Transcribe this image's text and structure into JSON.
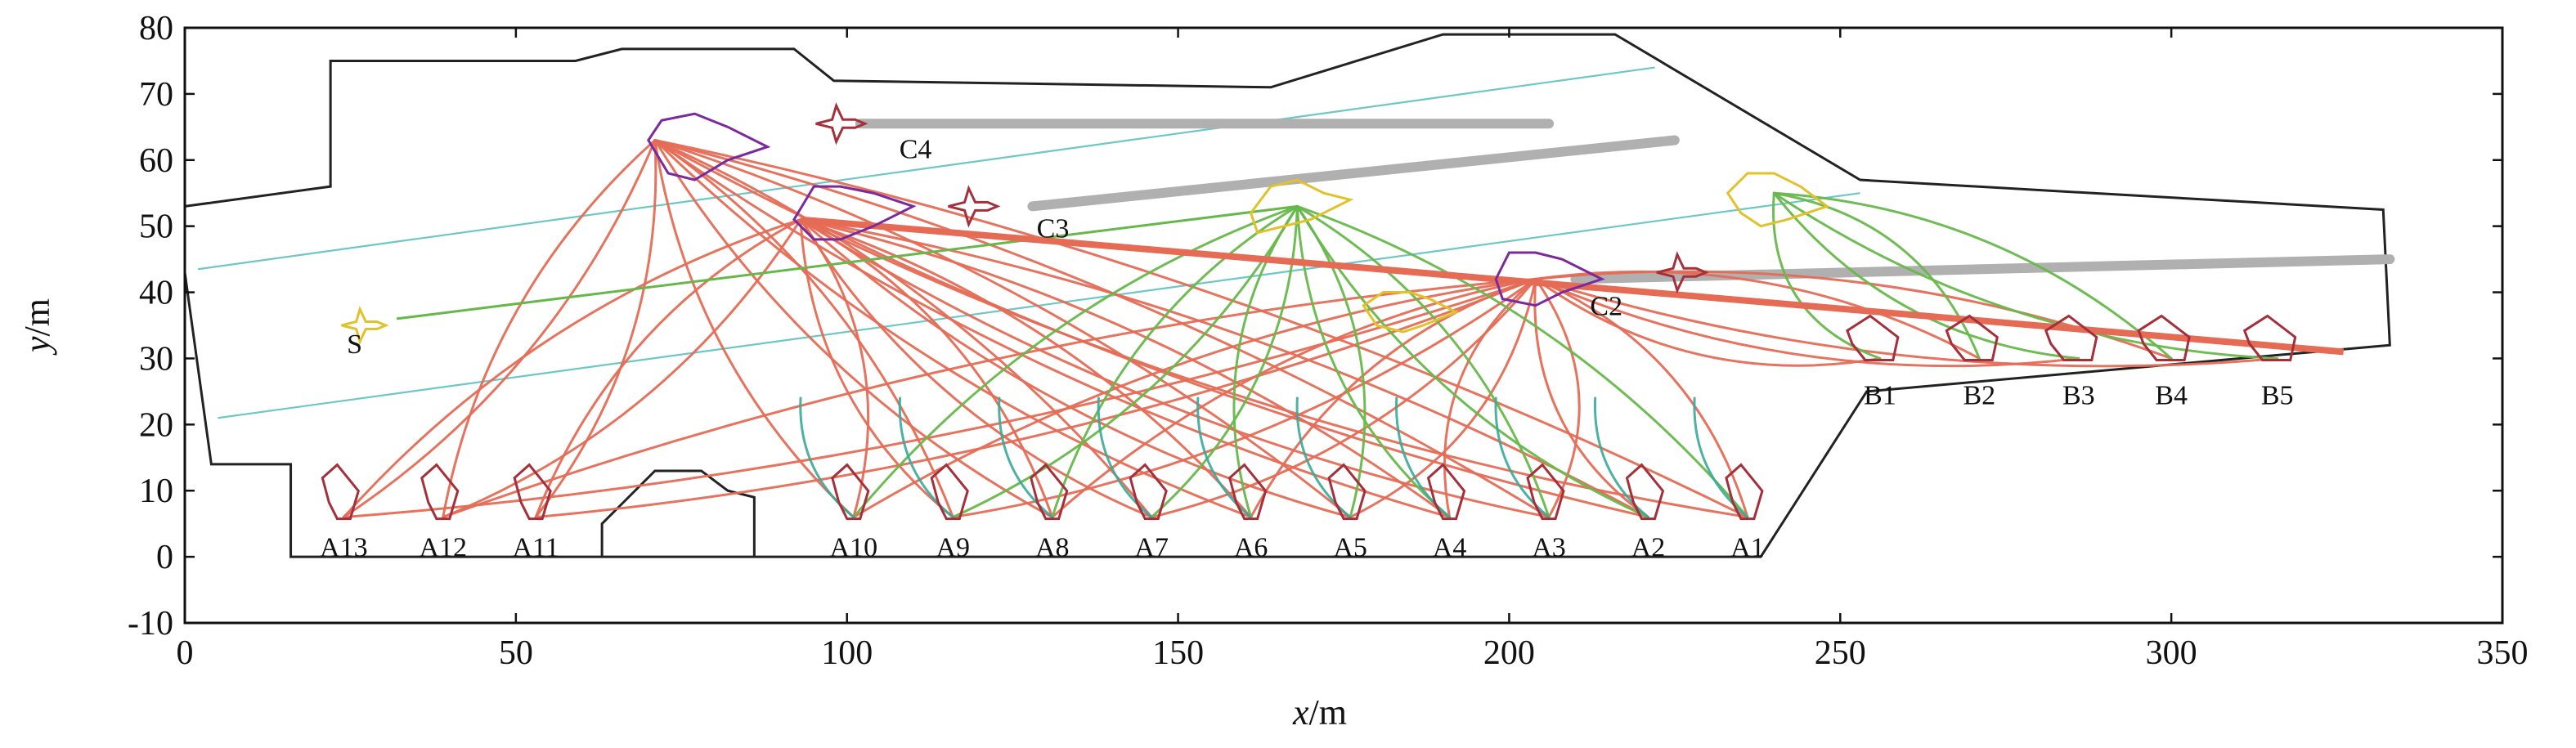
{
  "chart_data": {
    "type": "diagram-plot",
    "title": "",
    "xlabel_parts": {
      "var": "x",
      "unit": "/m"
    },
    "ylabel_parts": {
      "var": "y",
      "unit": "/m"
    },
    "xlim": [
      0,
      350
    ],
    "ylim": [
      -10,
      80
    ],
    "xticks": [
      0,
      50,
      100,
      150,
      200,
      250,
      300,
      350
    ],
    "yticks": [
      -10,
      0,
      10,
      20,
      30,
      40,
      50,
      60,
      70,
      80
    ],
    "grid": false,
    "colors": {
      "deck": "#222222",
      "runway": "#b0b0b0",
      "guide": "#6ec7c7",
      "red_path": "#e56b55",
      "green_path": "#67b84b",
      "teal_path": "#3aa89a",
      "aircraft": "#a3303a",
      "purple_marker": "#7a2a9c",
      "yellow_marker": "#e0c22a"
    },
    "deck_outline": [
      [
        0,
        53
      ],
      [
        22,
        56
      ],
      [
        22,
        75
      ],
      [
        59,
        75
      ],
      [
        66,
        76.8
      ],
      [
        92,
        76.8
      ],
      [
        98,
        72
      ],
      [
        164,
        71
      ],
      [
        190,
        79
      ],
      [
        216,
        79
      ],
      [
        253,
        57
      ],
      [
        332,
        52.5
      ],
      [
        333,
        32
      ],
      [
        254,
        25
      ],
      [
        238,
        0
      ],
      [
        16,
        0
      ],
      [
        16,
        14
      ],
      [
        4,
        14
      ],
      [
        0,
        43
      ]
    ],
    "hangar_outline": [
      [
        63,
        0
      ],
      [
        63,
        5
      ],
      [
        71,
        13
      ],
      [
        78,
        13
      ],
      [
        82,
        10
      ],
      [
        86,
        9
      ],
      [
        86,
        0
      ]
    ],
    "guide_lines": [
      {
        "start": [
          2,
          43.5
        ],
        "end": [
          222,
          74
        ]
      },
      {
        "start": [
          5,
          21
        ],
        "end": [
          253,
          55
        ]
      }
    ],
    "runways": [
      {
        "start": [
          102,
          65.5
        ],
        "end": [
          206,
          65.5
        ]
      },
      {
        "start": [
          128,
          53
        ],
        "end": [
          225,
          63
        ]
      },
      {
        "start": [
          210,
          42
        ],
        "end": [
          333,
          45
        ]
      }
    ],
    "named_points": [
      {
        "id": "A1",
        "x": 236,
        "y": 6
      },
      {
        "id": "A2",
        "x": 221,
        "y": 6
      },
      {
        "id": "A3",
        "x": 206,
        "y": 6
      },
      {
        "id": "A4",
        "x": 191,
        "y": 6
      },
      {
        "id": "A5",
        "x": 176,
        "y": 6
      },
      {
        "id": "A6",
        "x": 161,
        "y": 6
      },
      {
        "id": "A7",
        "x": 146,
        "y": 6
      },
      {
        "id": "A8",
        "x": 131,
        "y": 6
      },
      {
        "id": "A9",
        "x": 116,
        "y": 6
      },
      {
        "id": "A10",
        "x": 101,
        "y": 6
      },
      {
        "id": "A11",
        "x": 53,
        "y": 6
      },
      {
        "id": "A12",
        "x": 39,
        "y": 6
      },
      {
        "id": "A13",
        "x": 24,
        "y": 6
      },
      {
        "id": "B1",
        "x": 256,
        "y": 30
      },
      {
        "id": "B2",
        "x": 271,
        "y": 30
      },
      {
        "id": "B3",
        "x": 286,
        "y": 30
      },
      {
        "id": "B4",
        "x": 300,
        "y": 30
      },
      {
        "id": "B5",
        "x": 316,
        "y": 30
      },
      {
        "id": "C2",
        "x": 210,
        "y": 42
      },
      {
        "id": "C3",
        "x": 120,
        "y": 53
      },
      {
        "id": "C4",
        "x": 100,
        "y": 65
      },
      {
        "id": "S",
        "x": 22,
        "y": 35
      }
    ],
    "hubs": {
      "C4": [
        71,
        63
      ],
      "C3": [
        93,
        51
      ],
      "C2": [
        204,
        42
      ],
      "Y1": [
        168,
        53
      ],
      "Y2": [
        240,
        55
      ],
      "S": [
        32,
        36
      ]
    },
    "paths_red_from_C4": [
      "A13",
      "A12",
      "A11",
      "A10",
      "A9",
      "A8",
      "A7",
      "A6",
      "A5",
      "A4",
      "A3",
      "A2",
      "A1"
    ],
    "paths_red_from_C3": [
      "A13",
      "A12",
      "A11",
      "A10",
      "A9",
      "A8",
      "A7",
      "A6",
      "A5",
      "A4",
      "A3",
      "A2",
      "A1"
    ],
    "paths_red_from_C2": [
      "A13",
      "A12",
      "A11",
      "A10",
      "A9",
      "A8",
      "A7",
      "A6",
      "A5",
      "A4",
      "A3",
      "A2",
      "A1",
      "B1",
      "B2",
      "B3",
      "B4",
      "B5"
    ],
    "paths_green_from_Y1": [
      "A10",
      "A9",
      "A8",
      "A7",
      "A6",
      "A5",
      "A4",
      "A3",
      "A2",
      "A1"
    ],
    "paths_green_from_Y2": [
      "B1",
      "B2",
      "B3",
      "B4",
      "B5"
    ],
    "paths_teal_to_A": [
      "A10",
      "A9",
      "A8",
      "A7",
      "A6",
      "A5",
      "A4",
      "A3",
      "A2",
      "A1"
    ],
    "paths_green_S": [
      [
        32,
        36
      ],
      [
        168,
        53
      ]
    ]
  }
}
